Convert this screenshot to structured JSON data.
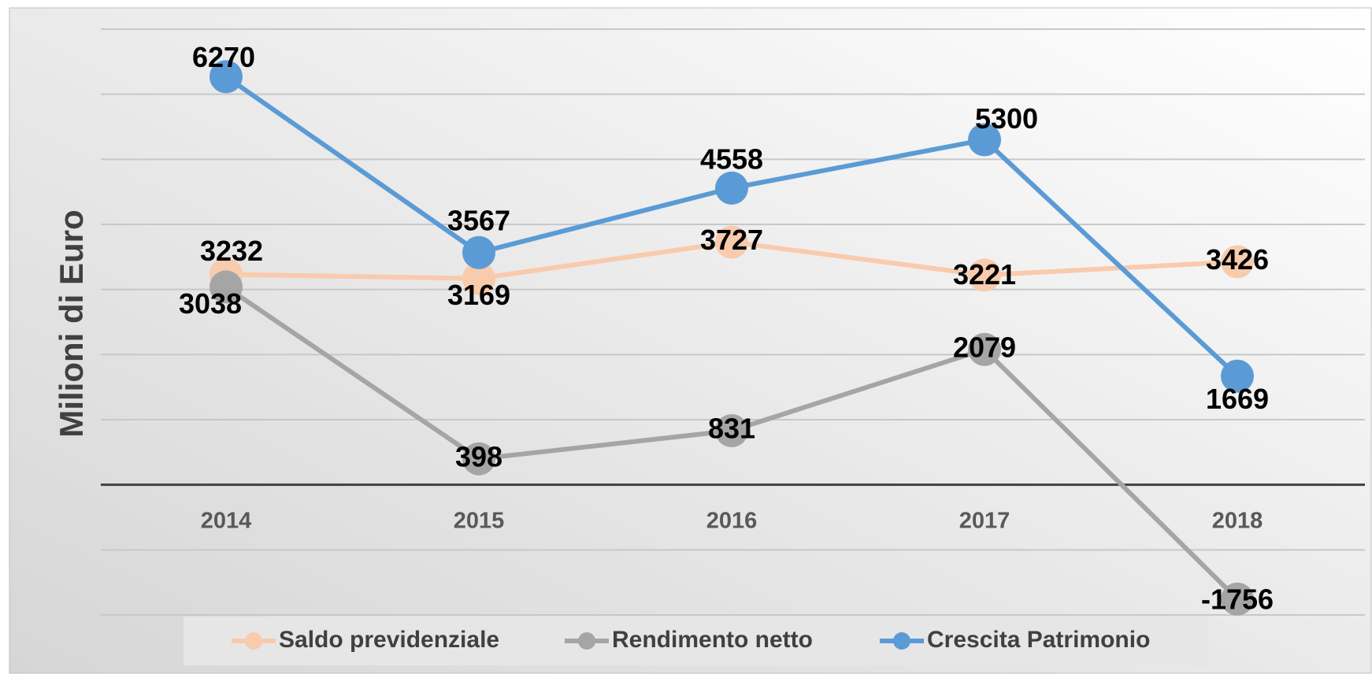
{
  "chart_data": {
    "type": "line",
    "y_label": "Milioni di Euro",
    "categories": [
      "2014",
      "2015",
      "2016",
      "2017",
      "2018"
    ],
    "series": [
      {
        "name": "Saldo previdenziale",
        "color": "#f8cbad",
        "values": [
          3232,
          3169,
          3727,
          3221,
          3426
        ]
      },
      {
        "name": "Rendimento netto",
        "color": "#a5a5a5",
        "values": [
          3038,
          398,
          831,
          2079,
          -1756
        ]
      },
      {
        "name": "Crescita Patrimonio",
        "color": "#5b9bd5",
        "values": [
          6270,
          3567,
          4558,
          5300,
          1669
        ]
      }
    ],
    "ylim": [
      -2000,
      7000
    ],
    "yticks": [
      -2000,
      -1000,
      0,
      1000,
      2000,
      3000,
      4000,
      5000,
      6000,
      7000
    ],
    "grid": true,
    "show_ytick_labels": false,
    "legend": "bottom"
  }
}
